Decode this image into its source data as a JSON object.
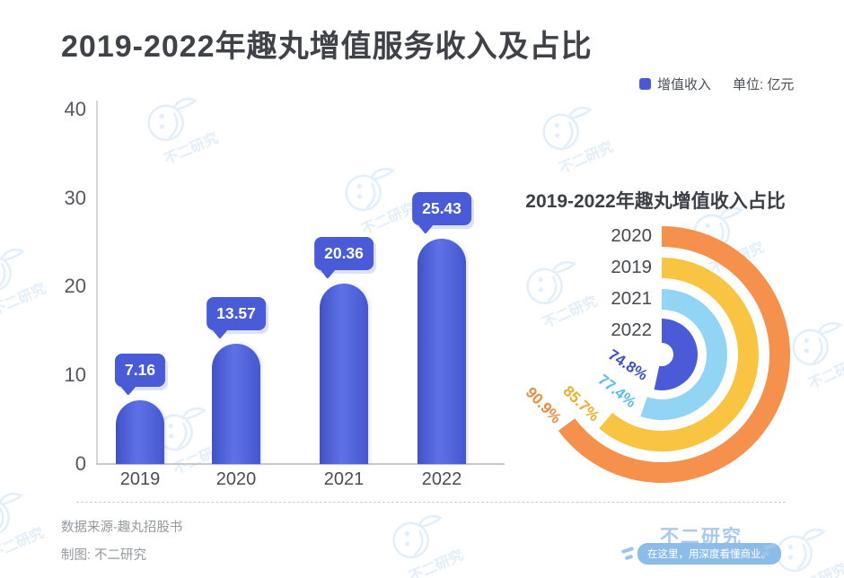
{
  "title": "2019-2022年趣丸增值服务收入及占比",
  "legend": {
    "swatch_color": "#4a5ad6",
    "label": "增值收入",
    "unit": "单位: 亿元"
  },
  "chart_data": [
    {
      "type": "bar",
      "title": "2019-2022年趣丸增值服务收入及占比",
      "series_name": "增值收入",
      "unit": "亿元",
      "categories": [
        "2019",
        "2020",
        "2021",
        "2022"
      ],
      "values": [
        7.16,
        13.57,
        20.36,
        25.43
      ],
      "value_labels": [
        "7.16",
        "13.57",
        "20.36",
        "25.43"
      ],
      "ylim": [
        0,
        40
      ],
      "yticks": [
        0,
        10,
        20,
        30,
        40
      ],
      "bar_color": "#4a5ad6",
      "grid": false,
      "label_style": "speech-bubble"
    },
    {
      "type": "radial-bar",
      "title": "2019-2022年趣丸增值收入占比",
      "start": "12-oclock",
      "direction": "clockwise",
      "rings_outer_to_inner": [
        {
          "year": "2020",
          "pct": 90.9,
          "pct_label": "90.9%",
          "color": "#f6904d",
          "label_color": "#ee8a40"
        },
        {
          "year": "2019",
          "pct": 85.7,
          "pct_label": "85.7%",
          "color": "#f9c441",
          "label_color": "#eead29"
        },
        {
          "year": "2021",
          "pct": 77.4,
          "pct_label": "77.4%",
          "color": "#92d4f3",
          "label_color": "#5cbcea"
        },
        {
          "year": "2022",
          "pct": 74.8,
          "pct_label": "74.8%",
          "color": "#4b5bd8",
          "label_color": "#3c52c9"
        }
      ]
    }
  ],
  "footer": {
    "source": "数据来源-趣丸招股书",
    "credit": "制图: 不二研究"
  },
  "brand": {
    "name": "不二研究",
    "slogan": "在这里，用深度看懂商业。"
  },
  "watermark": {
    "text": "不二研究"
  }
}
